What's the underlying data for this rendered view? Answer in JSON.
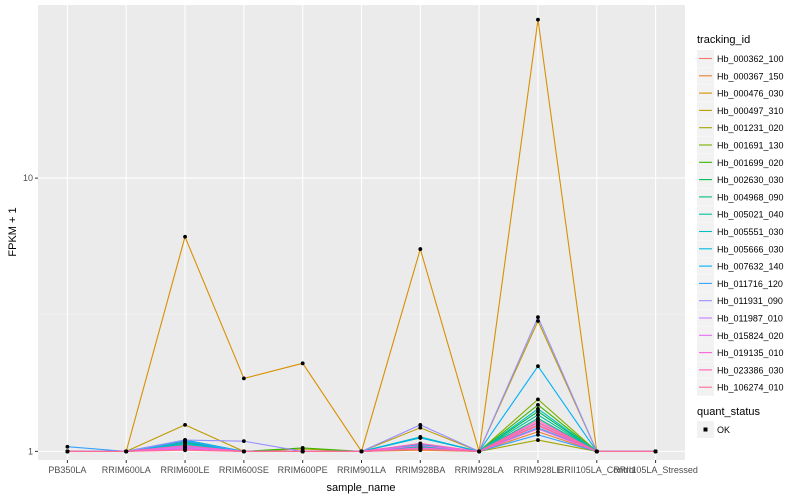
{
  "chart_data": {
    "type": "line",
    "xlabel": "sample_name",
    "ylabel": "FPKM + 1",
    "y_scale": "log10",
    "ylim": [
      0.93,
      43
    ],
    "y_ticks": [
      1,
      10
    ],
    "y_tick_labels": [
      "1",
      "10"
    ],
    "categories": [
      "PB350LA",
      "RRIM600LA",
      "RRIM600LE",
      "RRIM600SE",
      "RRIM600PE",
      "RRIM901LA",
      "RRIM928BA",
      "RRIM928LA",
      "RRIM928LE",
      "RRII105LA_Control",
      "RRII105LA_Stressed"
    ],
    "legend_title": "tracking_id",
    "series": [
      {
        "name": "Hb_000362_100",
        "color": "#F8766D",
        "values": [
          1.0,
          1.0,
          1.03,
          1.0,
          1.0,
          1.0,
          1.02,
          1.0,
          1.25,
          1.0,
          1.0
        ]
      },
      {
        "name": "Hb_000367_150",
        "color": "#EA8331",
        "values": [
          1.0,
          1.0,
          1.02,
          1.0,
          1.0,
          1.0,
          1.01,
          1.0,
          1.18,
          1.0,
          1.0
        ]
      },
      {
        "name": "Hb_000476_030",
        "color": "#D89000",
        "values": [
          1.0,
          1.0,
          6.1,
          1.85,
          2.1,
          1.0,
          5.5,
          1.0,
          38.0,
          1.0,
          1.0
        ]
      },
      {
        "name": "Hb_000497_310",
        "color": "#C09B00",
        "values": [
          1.0,
          1.0,
          1.25,
          1.0,
          1.02,
          1.0,
          1.22,
          1.0,
          3.0,
          1.0,
          1.0
        ]
      },
      {
        "name": "Hb_001231_020",
        "color": "#A3A500",
        "values": [
          1.0,
          1.0,
          1.05,
          1.0,
          1.0,
          1.0,
          1.04,
          1.0,
          1.1,
          1.0,
          1.0
        ]
      },
      {
        "name": "Hb_001691_130",
        "color": "#7CAE00",
        "values": [
          1.0,
          1.0,
          1.04,
          1.0,
          1.0,
          1.0,
          1.03,
          1.0,
          1.55,
          1.0,
          1.0
        ]
      },
      {
        "name": "Hb_001699_020",
        "color": "#39B600",
        "values": [
          1.0,
          1.0,
          1.1,
          1.0,
          1.03,
          1.0,
          1.12,
          1.0,
          1.48,
          1.0,
          1.0
        ]
      },
      {
        "name": "Hb_002630_030",
        "color": "#00BB4E",
        "values": [
          1.0,
          1.0,
          1.08,
          1.0,
          1.0,
          1.0,
          1.05,
          1.0,
          1.4,
          1.0,
          1.0
        ]
      },
      {
        "name": "Hb_004968_090",
        "color": "#00BF7D",
        "values": [
          1.0,
          1.0,
          1.02,
          1.0,
          1.0,
          1.0,
          1.02,
          1.0,
          1.32,
          1.0,
          1.0
        ]
      },
      {
        "name": "Hb_005021_040",
        "color": "#00C1A3",
        "values": [
          1.0,
          1.0,
          1.06,
          1.0,
          1.0,
          1.0,
          1.04,
          1.0,
          1.36,
          1.0,
          1.0
        ]
      },
      {
        "name": "Hb_005551_030",
        "color": "#00BFC4",
        "values": [
          1.0,
          1.0,
          1.09,
          1.0,
          1.0,
          1.0,
          1.13,
          1.0,
          1.43,
          1.0,
          1.0
        ]
      },
      {
        "name": "Hb_005666_030",
        "color": "#00BAE0",
        "values": [
          1.0,
          1.0,
          1.07,
          1.0,
          1.0,
          1.0,
          1.06,
          1.0,
          1.22,
          1.0,
          1.0
        ]
      },
      {
        "name": "Hb_007632_140",
        "color": "#00B0F6",
        "values": [
          1.0,
          1.0,
          1.1,
          1.0,
          1.0,
          1.0,
          1.12,
          1.0,
          2.05,
          1.0,
          1.0
        ]
      },
      {
        "name": "Hb_011716_120",
        "color": "#35A2FF",
        "values": [
          1.04,
          1.0,
          1.09,
          1.0,
          1.0,
          1.0,
          1.03,
          1.0,
          1.15,
          1.0,
          1.0
        ]
      },
      {
        "name": "Hb_011931_090",
        "color": "#9590FF",
        "values": [
          1.0,
          1.0,
          1.1,
          1.09,
          1.0,
          1.0,
          1.25,
          1.0,
          3.1,
          1.0,
          1.0
        ]
      },
      {
        "name": "Hb_011987_010",
        "color": "#C77CFF",
        "values": [
          1.0,
          1.0,
          1.04,
          1.0,
          1.0,
          1.0,
          1.02,
          1.0,
          1.27,
          1.0,
          1.0
        ]
      },
      {
        "name": "Hb_015824_020",
        "color": "#E76BF3",
        "values": [
          1.0,
          1.0,
          1.03,
          1.0,
          1.0,
          1.0,
          1.05,
          1.0,
          1.21,
          1.0,
          1.0
        ]
      },
      {
        "name": "Hb_019135_010",
        "color": "#FA62DB",
        "values": [
          1.0,
          1.0,
          1.02,
          1.0,
          1.0,
          1.0,
          1.03,
          1.0,
          1.3,
          1.0,
          1.0
        ]
      },
      {
        "name": "Hb_023386_030",
        "color": "#FF62BC",
        "values": [
          1.0,
          1.0,
          1.05,
          1.0,
          1.0,
          1.0,
          1.07,
          1.0,
          1.24,
          1.0,
          1.0
        ]
      },
      {
        "name": "Hb_106274_010",
        "color": "#FF6C91",
        "values": [
          1.0,
          1.0,
          1.01,
          1.0,
          1.0,
          1.0,
          1.02,
          1.0,
          1.28,
          1.0,
          1.0
        ]
      }
    ],
    "legend2_title": "quant_status",
    "legend2_items": [
      {
        "label": "OK",
        "color": "#000000"
      }
    ],
    "grid": true,
    "legend_position": "right"
  }
}
